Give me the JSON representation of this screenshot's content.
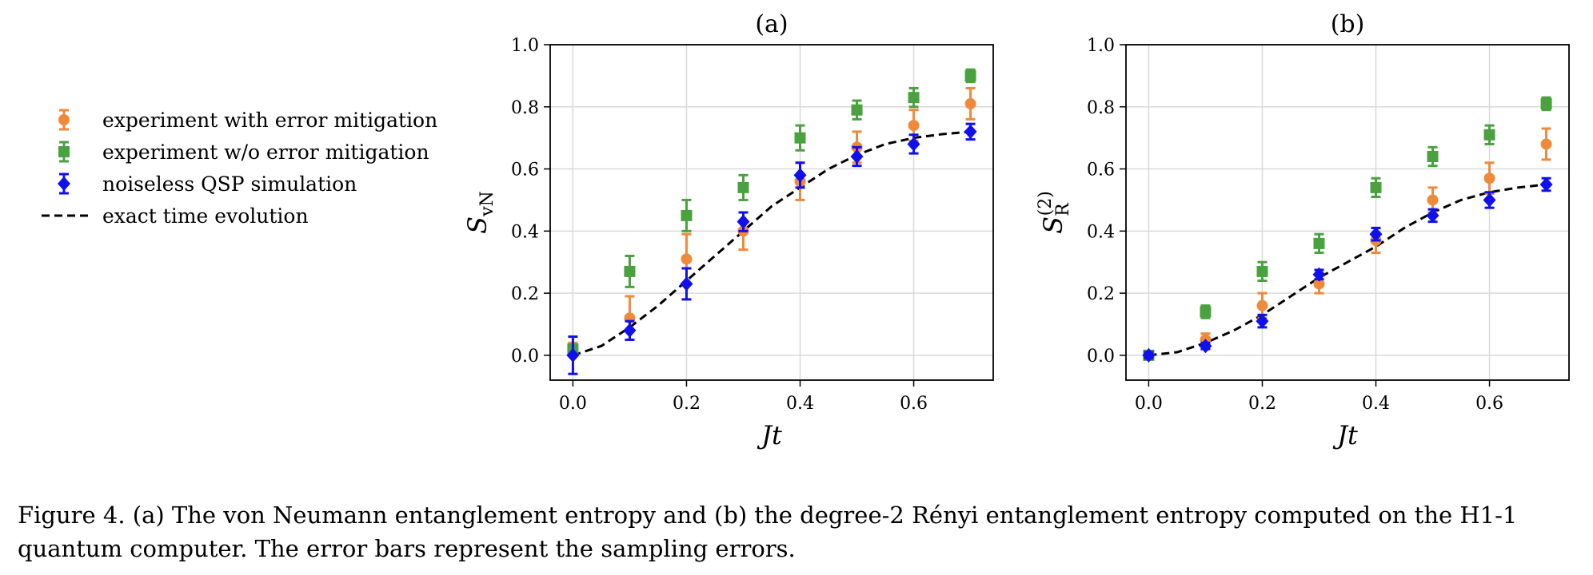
{
  "legend": [
    {
      "name": "experiment with error mitigation",
      "color": "#ef8a3a",
      "marker": "circle"
    },
    {
      "name": "experiment w/o error mitigation",
      "color": "#4aa23f",
      "marker": "square"
    },
    {
      "name": "noiseless QSP simulation",
      "color": "#1010ee",
      "marker": "diamond"
    },
    {
      "name": "exact time evolution",
      "color": "#000000",
      "marker": "dashed-line"
    }
  ],
  "chart_data": [
    {
      "type": "scatter",
      "title": "(a)",
      "xlabel": "Jt",
      "ylabel": "S_vN",
      "xlim": [
        -0.04,
        0.74
      ],
      "ylim": [
        -0.08,
        1.0
      ],
      "xticks": [
        "0.0",
        "0.2",
        "0.4",
        "0.6"
      ],
      "yticks": [
        "0.0",
        "0.2",
        "0.4",
        "0.6",
        "0.8",
        "1.0"
      ],
      "grid": true,
      "x": [
        0.0,
        0.1,
        0.2,
        0.3,
        0.4,
        0.5,
        0.6,
        0.7
      ],
      "series": [
        {
          "name": "experiment with error mitigation",
          "values": [
            0.02,
            0.12,
            0.31,
            0.4,
            0.56,
            0.67,
            0.74,
            0.81
          ],
          "errors": [
            0.02,
            0.07,
            0.08,
            0.06,
            0.06,
            0.05,
            0.05,
            0.05
          ]
        },
        {
          "name": "experiment w/o error mitigation",
          "values": [
            0.02,
            0.27,
            0.45,
            0.54,
            0.7,
            0.79,
            0.83,
            0.9
          ],
          "errors": [
            0.01,
            0.05,
            0.05,
            0.04,
            0.04,
            0.03,
            0.03,
            0.02
          ]
        },
        {
          "name": "noiseless QSP simulation",
          "values": [
            0.0,
            0.08,
            0.23,
            0.43,
            0.58,
            0.64,
            0.68,
            0.72
          ],
          "errors": [
            0.06,
            0.03,
            0.05,
            0.03,
            0.04,
            0.03,
            0.03,
            0.025
          ]
        },
        {
          "name": "exact time evolution",
          "line": true,
          "x": [
            0.0,
            0.05,
            0.1,
            0.15,
            0.2,
            0.25,
            0.3,
            0.35,
            0.4,
            0.45,
            0.5,
            0.55,
            0.6,
            0.65,
            0.7
          ],
          "values": [
            0.0,
            0.03,
            0.09,
            0.16,
            0.24,
            0.32,
            0.4,
            0.48,
            0.54,
            0.6,
            0.645,
            0.68,
            0.7,
            0.712,
            0.72
          ]
        }
      ]
    },
    {
      "type": "scatter",
      "title": "(b)",
      "xlabel": "Jt",
      "ylabel": "S_R^(2)",
      "xlim": [
        -0.04,
        0.74
      ],
      "ylim": [
        -0.08,
        1.0
      ],
      "xticks": [
        "0.0",
        "0.2",
        "0.4",
        "0.6"
      ],
      "yticks": [
        "0.0",
        "0.2",
        "0.4",
        "0.6",
        "0.8",
        "1.0"
      ],
      "grid": true,
      "x": [
        0.0,
        0.1,
        0.2,
        0.3,
        0.4,
        0.5,
        0.6,
        0.7
      ],
      "series": [
        {
          "name": "experiment with error mitigation",
          "values": [
            0.0,
            0.05,
            0.16,
            0.23,
            0.37,
            0.5,
            0.57,
            0.68
          ],
          "errors": [
            0.01,
            0.02,
            0.04,
            0.03,
            0.04,
            0.04,
            0.05,
            0.05
          ]
        },
        {
          "name": "experiment w/o error mitigation",
          "values": [
            0.0,
            0.14,
            0.27,
            0.36,
            0.54,
            0.64,
            0.71,
            0.81
          ],
          "errors": [
            0.01,
            0.02,
            0.03,
            0.03,
            0.03,
            0.03,
            0.03,
            0.02
          ]
        },
        {
          "name": "noiseless QSP simulation",
          "values": [
            0.0,
            0.03,
            0.11,
            0.26,
            0.39,
            0.45,
            0.5,
            0.55
          ],
          "errors": [
            0.01,
            0.01,
            0.02,
            0.015,
            0.02,
            0.02,
            0.025,
            0.02
          ]
        },
        {
          "name": "exact time evolution",
          "line": true,
          "x": [
            0.0,
            0.05,
            0.1,
            0.15,
            0.2,
            0.25,
            0.3,
            0.35,
            0.4,
            0.45,
            0.5,
            0.55,
            0.6,
            0.65,
            0.7
          ],
          "values": [
            0.0,
            0.01,
            0.04,
            0.08,
            0.13,
            0.19,
            0.25,
            0.3,
            0.35,
            0.41,
            0.46,
            0.5,
            0.525,
            0.54,
            0.55
          ]
        }
      ]
    }
  ],
  "caption": {
    "line1": "Figure 4. (a) The von Neumann entanglement entropy and (b) the degree-2 Rényi entanglement entropy computed on the H1-1",
    "line2": "quantum computer. The error bars represent the sampling errors."
  }
}
